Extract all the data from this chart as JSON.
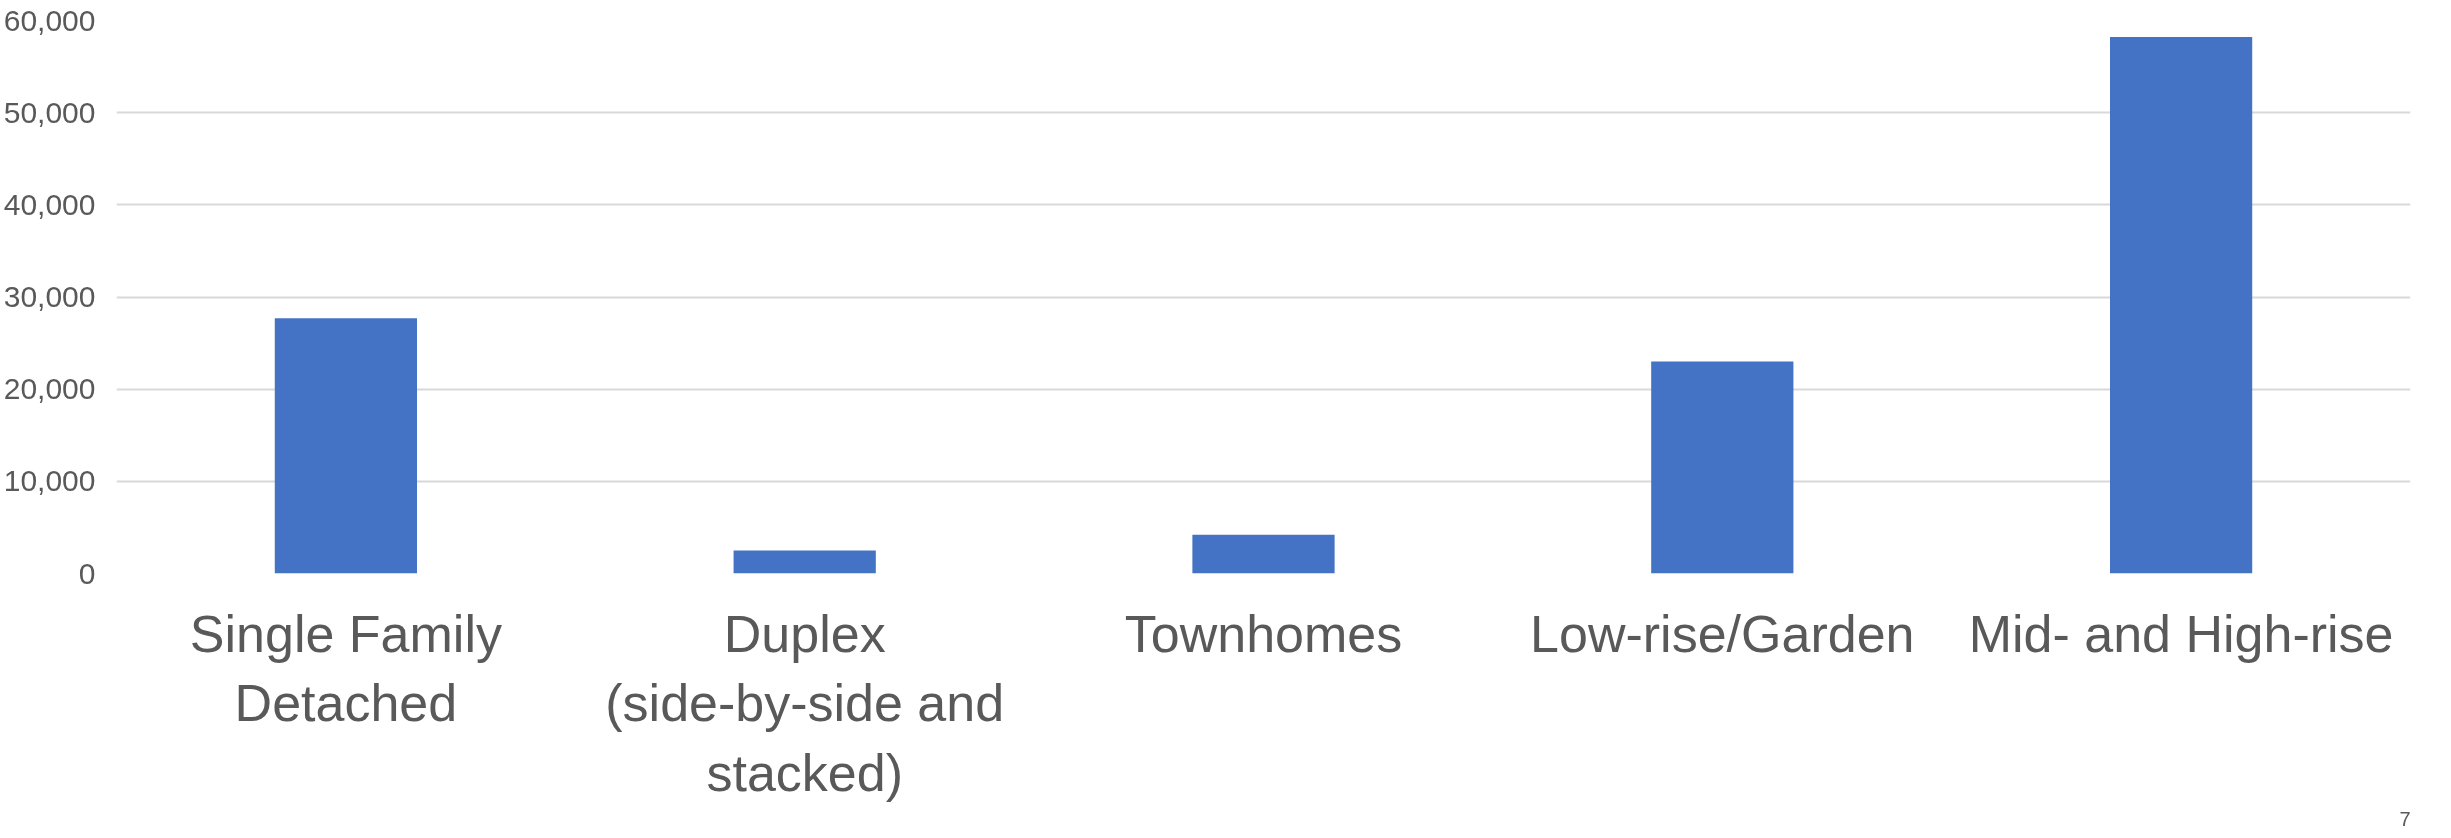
{
  "chart_data": {
    "type": "bar",
    "categories": [
      "Single Family Detached",
      "Duplex (side-by-side and stacked)",
      "Townhomes",
      "Low-rise/Garden",
      "Mid- and High-rise"
    ],
    "values": [
      27700,
      2500,
      4200,
      23000,
      58200
    ],
    "color": "#4472c4",
    "ylim": [
      0,
      60000
    ],
    "yticks": [
      {
        "value": 0,
        "label": "0"
      },
      {
        "value": 10000,
        "label": "10,000"
      },
      {
        "value": 20000,
        "label": "20,000"
      },
      {
        "value": 30000,
        "label": "30,000"
      },
      {
        "value": 40000,
        "label": "40,000"
      },
      {
        "value": 50000,
        "label": "50,000"
      },
      {
        "value": 60000,
        "label": "60,000"
      }
    ],
    "grid": "y",
    "annotations": [
      "7"
    ]
  }
}
